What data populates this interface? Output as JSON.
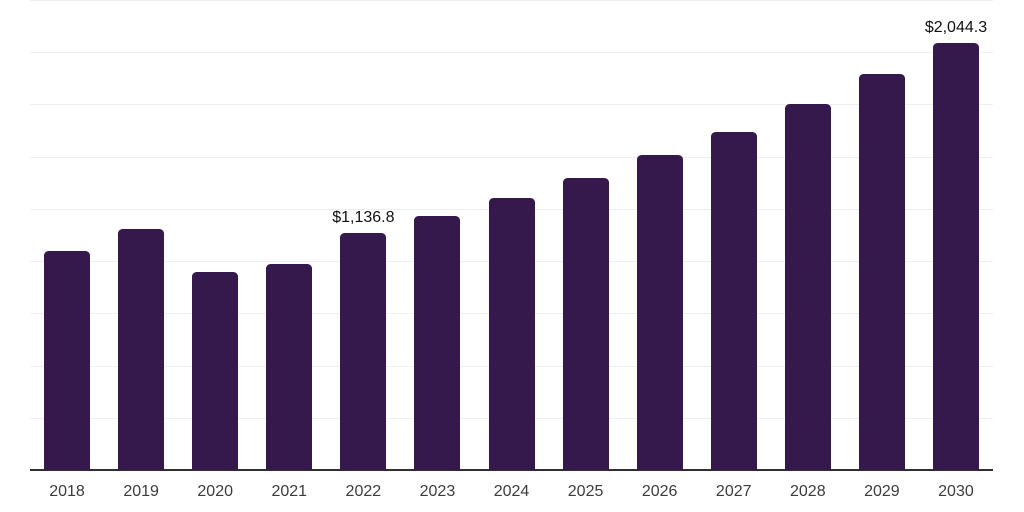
{
  "chart_data": {
    "type": "bar",
    "title": "",
    "xlabel": "",
    "ylabel": "",
    "categories": [
      "2018",
      "2019",
      "2020",
      "2021",
      "2022",
      "2023",
      "2024",
      "2025",
      "2026",
      "2027",
      "2028",
      "2029",
      "2030"
    ],
    "values": [
      1050,
      1152,
      946,
      988,
      1136.8,
      1214,
      1304,
      1396,
      1508,
      1619,
      1750,
      1894,
      2044.3
    ],
    "annotations": [
      {
        "category": "2022",
        "text": "$1,136.8"
      },
      {
        "category": "2030",
        "text": "$2,044.3"
      }
    ],
    "ylim": [
      0,
      2250
    ],
    "ytick_step": 250,
    "grid": "horizontal-only",
    "y_axis_tick_labels_visible": false,
    "legend": "none",
    "colors": {
      "bar": "#36194c",
      "axis_line": "#2f2f2f",
      "gridline": "#efefef",
      "value_label": "#111111",
      "tick_label": "#3c3c3c",
      "background": "#ffffff"
    }
  }
}
